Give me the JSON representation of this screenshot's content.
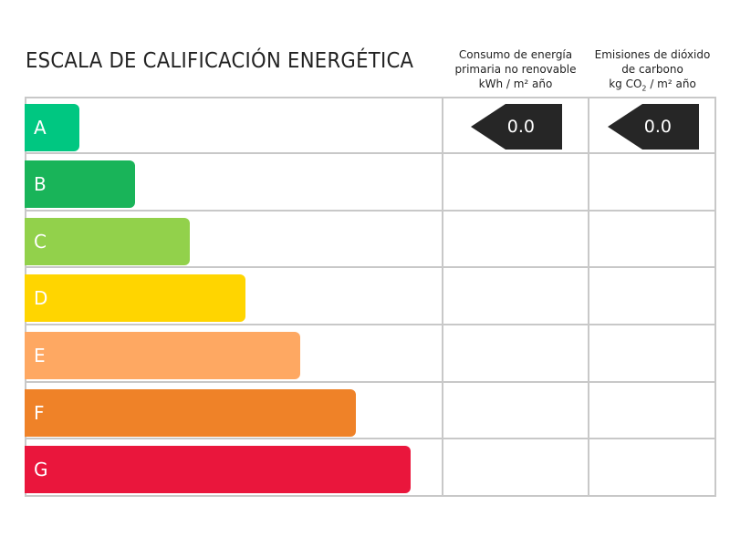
{
  "title": "ESCALA DE CALIFICACIÓN ENERGÉTICA",
  "headers": {
    "energy": {
      "line1": "Consumo de energía",
      "line2": "primaria no renovable",
      "unit": "kWh / m² año"
    },
    "emissions": {
      "line1": "Emisiones de dióxido",
      "line2": "de carbono",
      "unit_pre": "kg CO",
      "unit_sub": "2",
      "unit_post": " / m² año"
    }
  },
  "ratings": [
    {
      "label": "A",
      "color": "#00c781"
    },
    {
      "label": "B",
      "color": "#19b459"
    },
    {
      "label": "C",
      "color": "#92d14b"
    },
    {
      "label": "D",
      "color": "#ffd500"
    },
    {
      "label": "E",
      "color": "#fea862"
    },
    {
      "label": "F",
      "color": "#ef8228"
    },
    {
      "label": "G",
      "color": "#ea163c"
    }
  ],
  "current": {
    "rating": "A",
    "energy_value": "0.0",
    "emissions_value": "0.0",
    "indicator_color": "#262626"
  }
}
